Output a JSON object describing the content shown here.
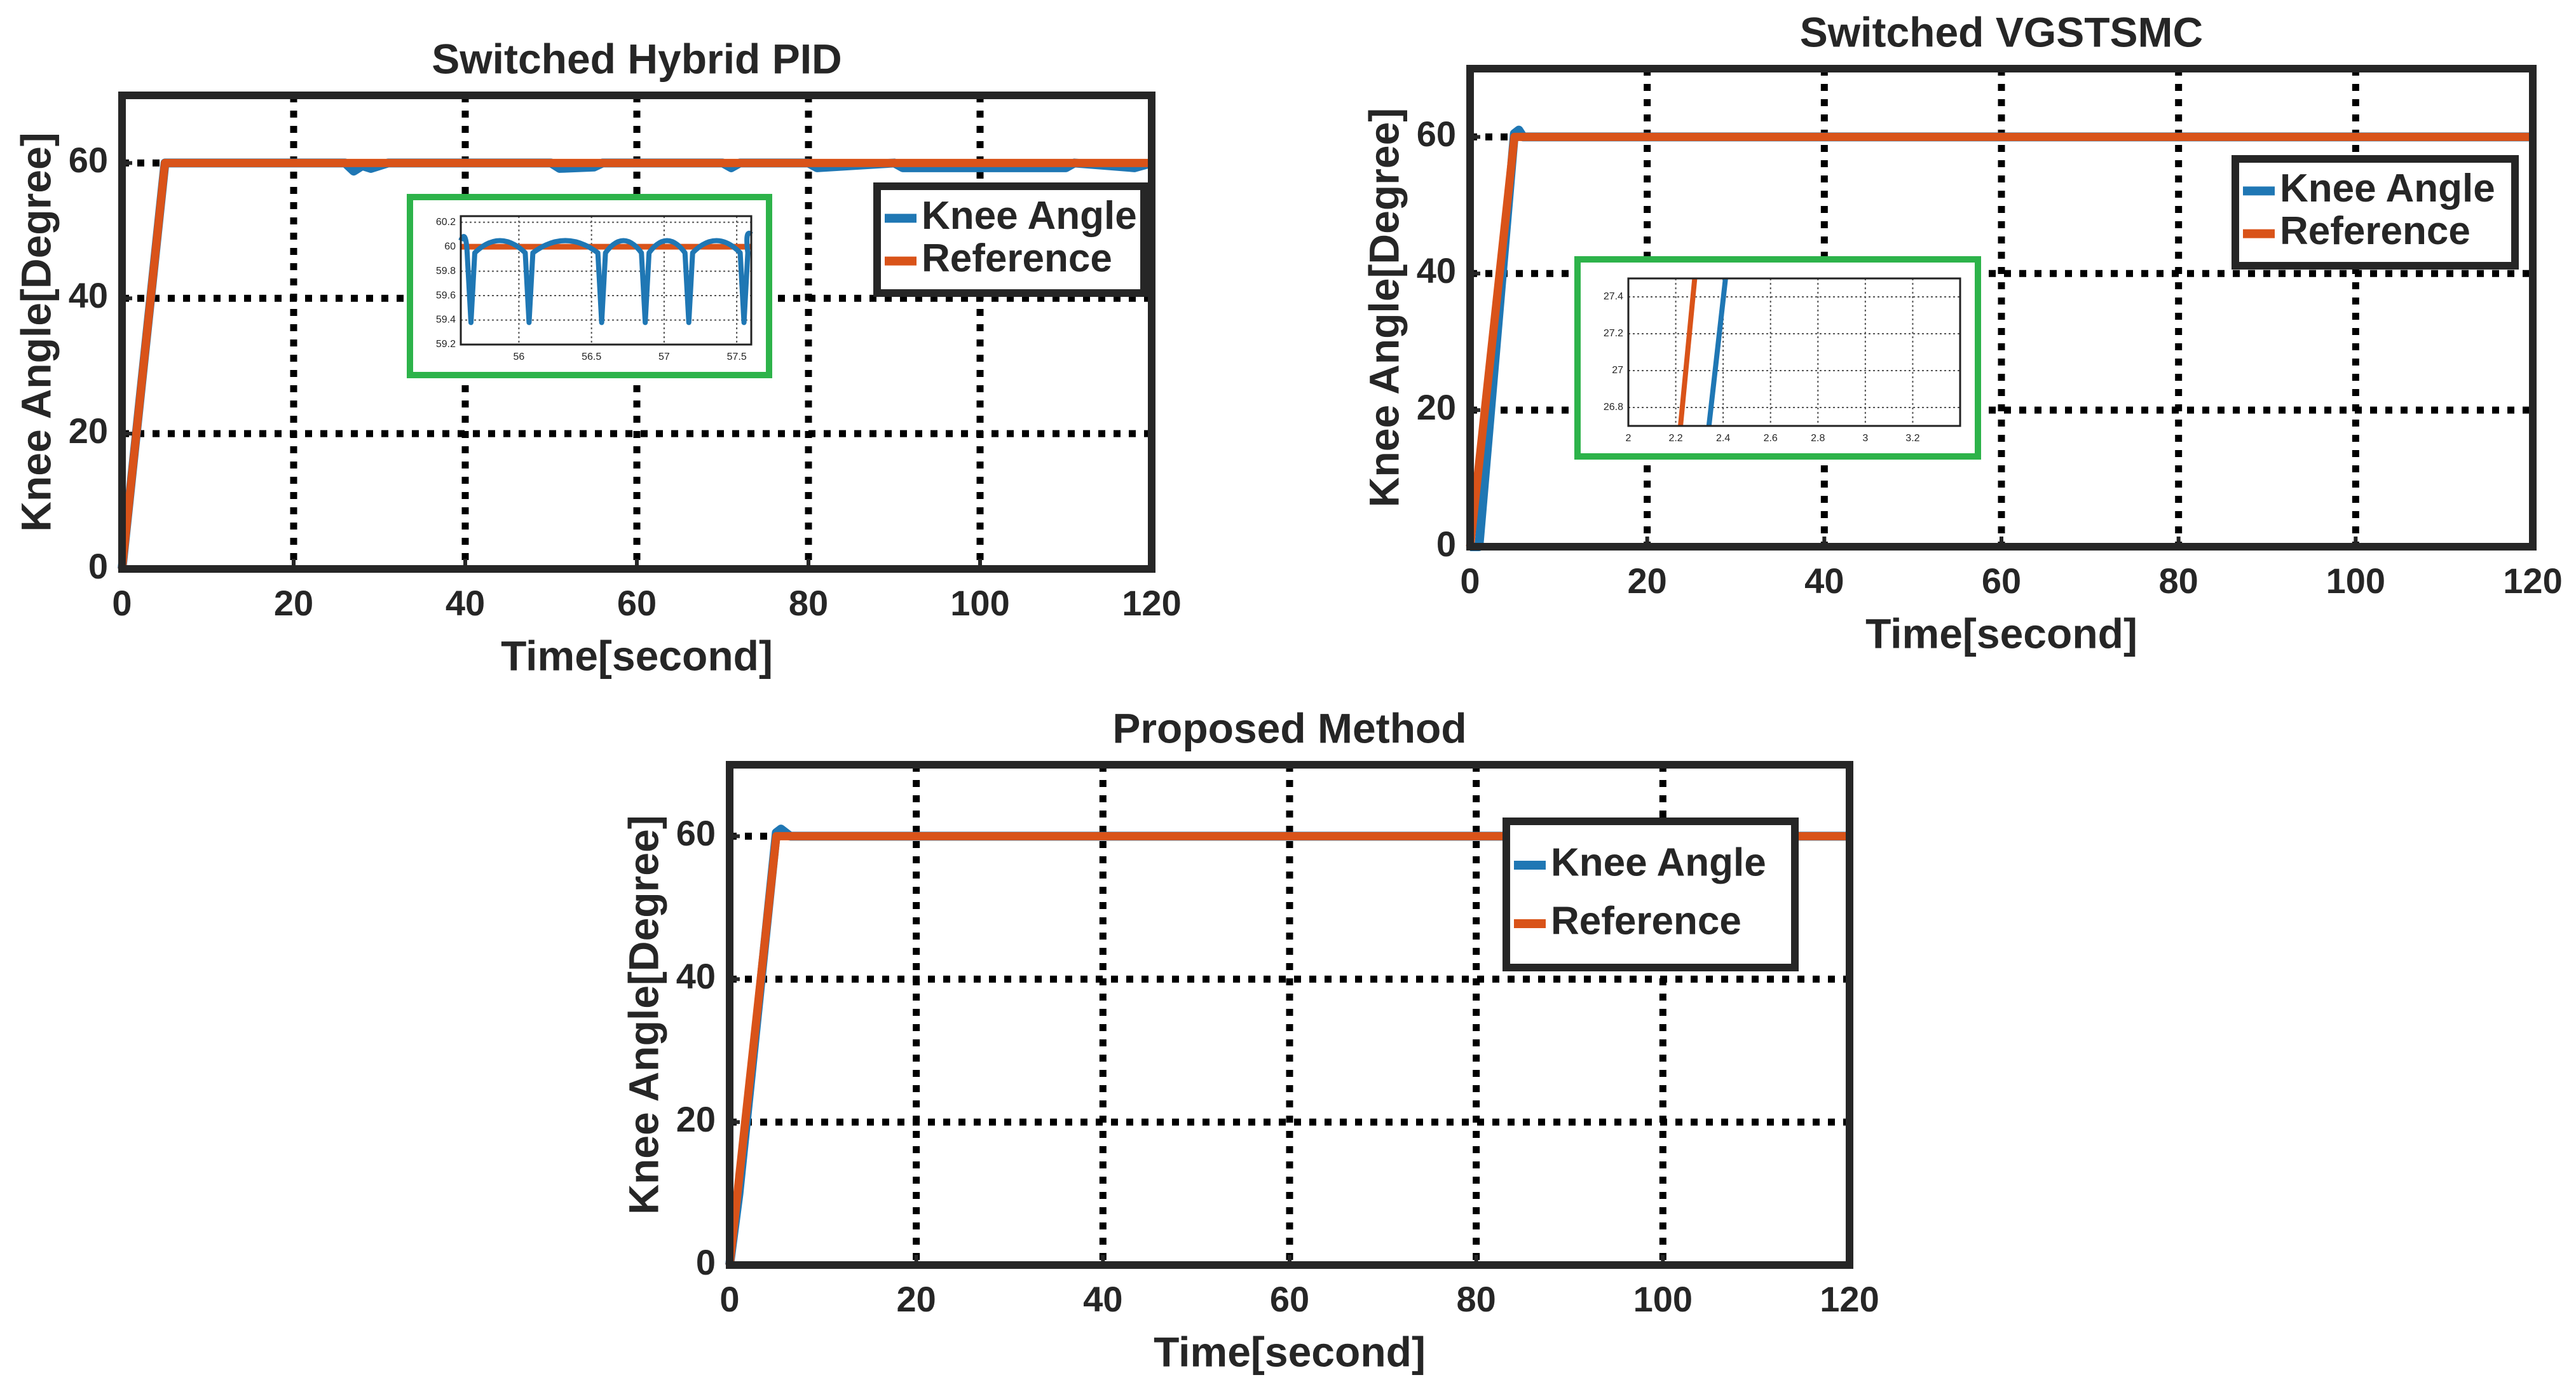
{
  "colors": {
    "knee": "#1f77b4",
    "reference": "#d95319",
    "axis": "#262626",
    "grid": "#000000",
    "inset_frame": "#2db34a"
  },
  "chart_data": [
    {
      "type": "line",
      "title": "Switched Hybrid PID",
      "xlabel": "Time[second]",
      "ylabel": "Knee Angle[Degree]",
      "xlim": [
        0,
        120
      ],
      "ylim": [
        0,
        70
      ],
      "xticks": [
        0,
        20,
        40,
        60,
        80,
        100,
        120
      ],
      "yticks": [
        0,
        20,
        40,
        60
      ],
      "grid": true,
      "legend_position": "top-right",
      "series": [
        {
          "name": "Knee Angle",
          "color": "#1f77b4",
          "x": [
            0,
            5,
            10,
            26,
            27,
            28,
            29,
            31,
            50,
            51,
            55,
            56,
            70,
            71,
            72,
            80,
            81,
            90,
            91,
            110,
            111,
            118,
            120
          ],
          "y": [
            0,
            60,
            60,
            60,
            58.8,
            59.6,
            59.2,
            60,
            60,
            59.2,
            59.4,
            60,
            60,
            59.3,
            60,
            60,
            59.3,
            60,
            59.3,
            59.3,
            60,
            59.3,
            60
          ]
        },
        {
          "name": "Reference",
          "color": "#d95319",
          "x": [
            0,
            5,
            120
          ],
          "y": [
            0,
            60,
            60
          ]
        }
      ],
      "inset": {
        "xlim": [
          55.6,
          57.6
        ],
        "ylim": [
          59.2,
          60.25
        ],
        "xticks": [
          56,
          56.5,
          57,
          57.5
        ],
        "yticks": [
          59.2,
          59.4,
          59.6,
          59.8,
          60,
          60.2
        ],
        "xticklabels": [
          "56",
          "56.5",
          "57",
          "57.5"
        ],
        "yticklabels": [
          "59.2",
          "59.4",
          "59.6",
          "59.8",
          "60",
          "60.2"
        ],
        "dips_x": [
          55.67,
          56.07,
          56.57,
          56.87,
          57.17,
          57.55
        ],
        "dip_min": 59.38,
        "reference": 60
      }
    },
    {
      "type": "line",
      "title": "Switched VGSTSMC",
      "xlabel": "Time[second]",
      "ylabel": "Knee Angle[Degree]",
      "xlim": [
        0,
        120
      ],
      "ylim": [
        0,
        70
      ],
      "xticks": [
        0,
        20,
        40,
        60,
        80,
        100,
        120
      ],
      "yticks": [
        0,
        20,
        40,
        60
      ],
      "grid": true,
      "legend_position": "top-right",
      "series": [
        {
          "name": "Knee Angle",
          "color": "#1f77b4",
          "x": [
            0,
            1,
            5,
            5.5,
            6,
            120
          ],
          "y": [
            0,
            0,
            60.5,
            61,
            60,
            60
          ]
        },
        {
          "name": "Reference",
          "color": "#d95319",
          "x": [
            0,
            5,
            120
          ],
          "y": [
            0,
            60,
            60
          ]
        }
      ],
      "inset": {
        "xlim": [
          2,
          3.4
        ],
        "ylim": [
          26.7,
          27.5
        ],
        "xticks": [
          2,
          2.2,
          2.4,
          2.6,
          2.8,
          3,
          3.2
        ],
        "yticks": [
          26.8,
          27,
          27.2,
          27.4
        ],
        "xticklabels": [
          "2",
          "2.2",
          "2.4",
          "2.6",
          "2.8",
          "3",
          "3.2"
        ],
        "yticklabels": [
          "26.8",
          "27",
          "27.2",
          "27.4"
        ],
        "knee_x": [
          2.34,
          2.41
        ],
        "ref_x": [
          2.22,
          2.28
        ]
      }
    },
    {
      "type": "line",
      "title": "Proposed Method",
      "xlabel": "Time[second]",
      "ylabel": "Knee Angle[Degree]",
      "xlim": [
        0,
        120
      ],
      "ylim": [
        0,
        70
      ],
      "xticks": [
        0,
        20,
        40,
        60,
        80,
        100,
        120
      ],
      "yticks": [
        0,
        20,
        40,
        60
      ],
      "grid": true,
      "legend_position": "top-right",
      "series": [
        {
          "name": "Knee Angle",
          "color": "#1f77b4",
          "x": [
            0,
            1,
            5,
            5.5,
            6.5,
            120
          ],
          "y": [
            0,
            10,
            60.5,
            61,
            60,
            60
          ]
        },
        {
          "name": "Reference",
          "color": "#d95319",
          "x": [
            0,
            5,
            120
          ],
          "y": [
            0,
            60,
            60
          ]
        }
      ],
      "inset": null
    }
  ]
}
